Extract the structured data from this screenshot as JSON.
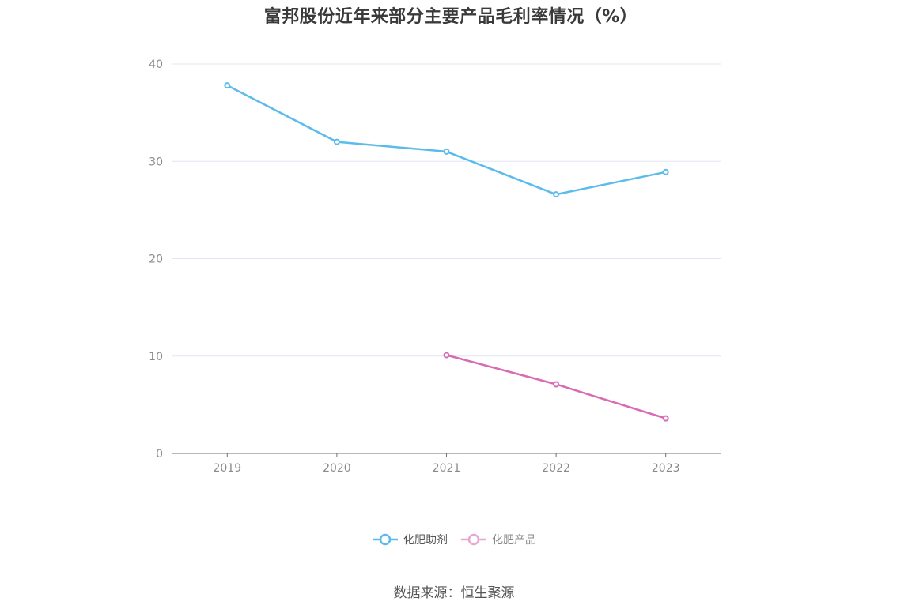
{
  "chart_data": {
    "type": "line",
    "title": "富邦股份近年来部分主要产品毛利率情况（%）",
    "categories": [
      "2019",
      "2020",
      "2021",
      "2022",
      "2023"
    ],
    "yticks": [
      "0",
      "10",
      "20",
      "30",
      "40"
    ],
    "ylim": [
      0,
      40
    ],
    "grid": true,
    "legend_position": "bottom-center",
    "series": [
      {
        "name": "化肥助剂",
        "color": "#5bbcec",
        "values": [
          37.8,
          32.0,
          31.0,
          26.6,
          28.9
        ]
      },
      {
        "name": "化肥产品",
        "color": "#d86bb5",
        "values": [
          null,
          null,
          10.1,
          7.1,
          3.6
        ]
      }
    ]
  },
  "footer": {
    "source": "数据来源：恒生聚源"
  }
}
